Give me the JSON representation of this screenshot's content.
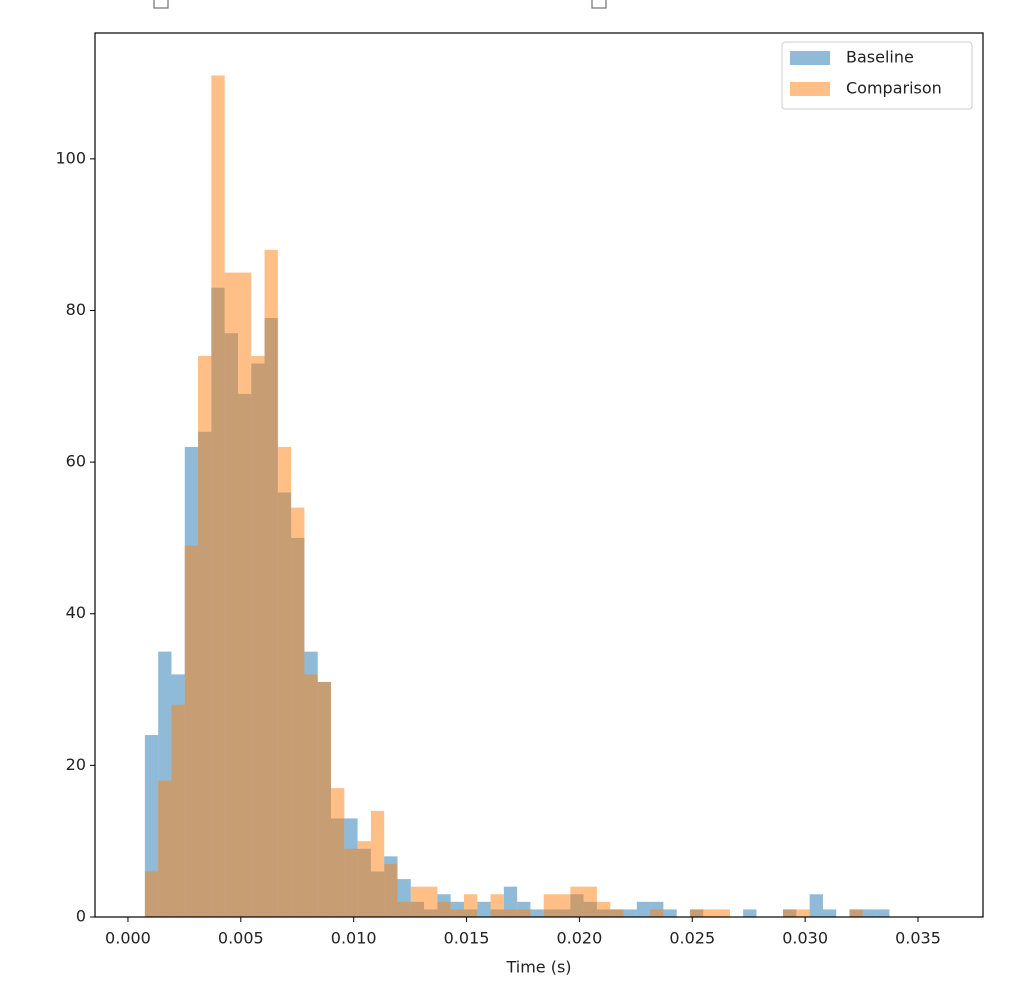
{
  "chart_data": {
    "type": "histogram",
    "x_label": "Time (s)",
    "bins": [
      0.00075,
      0.001339,
      0.001928,
      0.002517,
      0.003106,
      0.003695,
      0.004284,
      0.004873,
      0.005462,
      0.006051,
      0.00664,
      0.007229,
      0.007818,
      0.008407,
      0.008996,
      0.009585,
      0.010174,
      0.010763,
      0.011352,
      0.011941,
      0.01253,
      0.013119,
      0.013708,
      0.014297,
      0.014886,
      0.015475,
      0.016064,
      0.016653,
      0.017242,
      0.017831,
      0.01842,
      0.019009,
      0.019598,
      0.020187,
      0.020776,
      0.021365,
      0.021954,
      0.022543,
      0.023132,
      0.023721,
      0.02431,
      0.024899,
      0.025488,
      0.026077,
      0.026666,
      0.027255,
      0.027844,
      0.028433,
      0.029022,
      0.029611,
      0.0302,
      0.030789,
      0.031378,
      0.031967,
      0.032556,
      0.033145,
      0.033734
    ],
    "series": [
      {
        "name": "Baseline",
        "color": "#1f77b4",
        "values": [
          24,
          35,
          32,
          62,
          64,
          83,
          77,
          69,
          73,
          79,
          56,
          50,
          35,
          31,
          13,
          13,
          9,
          6,
          8,
          5,
          2,
          1,
          3,
          2,
          1,
          2,
          1,
          4,
          2,
          1,
          1,
          1,
          3,
          2,
          1,
          1,
          1,
          2,
          2,
          1,
          0,
          1,
          0,
          0,
          0,
          1,
          0,
          0,
          1,
          0,
          3,
          1,
          0,
          1,
          1,
          1
        ]
      },
      {
        "name": "Comparison",
        "color": "#ff7f0e",
        "values": [
          6,
          18,
          28,
          49,
          74,
          111,
          85,
          85,
          74,
          88,
          62,
          54,
          32,
          31,
          17,
          9,
          10,
          14,
          7,
          2,
          4,
          4,
          2,
          1,
          3,
          0,
          3,
          1,
          1,
          0,
          3,
          3,
          4,
          4,
          2,
          1,
          0,
          0,
          1,
          0,
          0,
          1,
          1,
          1,
          0,
          0,
          0,
          0,
          1,
          1,
          0,
          0,
          0,
          1,
          0,
          0
        ]
      }
    ],
    "xlim": [
      -0.00146,
      0.03788
    ],
    "ylim": [
      0,
      116.6
    ],
    "xticks": [
      {
        "value": 0,
        "label": "0.000"
      },
      {
        "value": 0.005,
        "label": "0.005"
      },
      {
        "value": 0.01,
        "label": "0.010"
      },
      {
        "value": 0.015,
        "label": "0.015"
      },
      {
        "value": 0.02,
        "label": "0.020"
      },
      {
        "value": 0.025,
        "label": "0.025"
      },
      {
        "value": 0.03,
        "label": "0.030"
      },
      {
        "value": 0.035,
        "label": "0.035"
      }
    ],
    "yticks": [
      0,
      20,
      40,
      60,
      80,
      100
    ],
    "legend": "upper right",
    "opacity": 0.5
  }
}
